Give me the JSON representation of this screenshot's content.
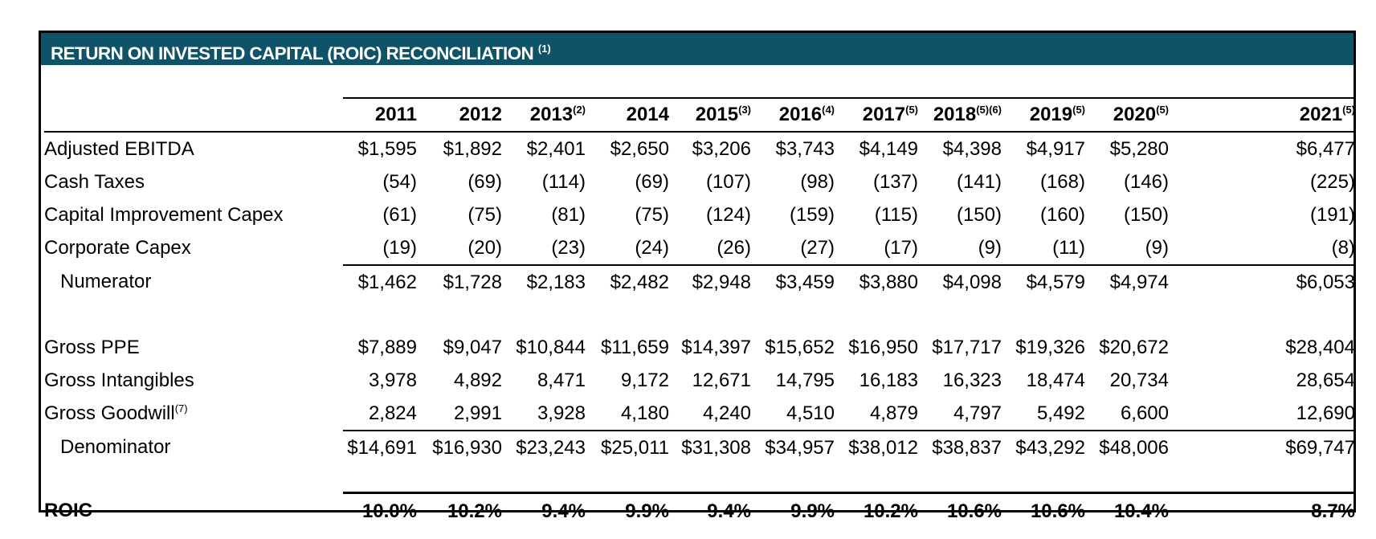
{
  "header": {
    "title": "RETURN ON INVESTED CAPITAL (ROIC) RECONCILIATION",
    "title_note": "(1)"
  },
  "years": [
    {
      "label": "2011",
      "note": ""
    },
    {
      "label": "2012",
      "note": ""
    },
    {
      "label": "2013",
      "note": "(2)"
    },
    {
      "label": "2014",
      "note": ""
    },
    {
      "label": "2015",
      "note": "(3)"
    },
    {
      "label": "2016",
      "note": "(4)"
    },
    {
      "label": "2017",
      "note": "(5)"
    },
    {
      "label": "2018",
      "note": "(5)(6)"
    },
    {
      "label": "2019",
      "note": "(5)"
    },
    {
      "label": "2020",
      "note": "(5)"
    },
    {
      "label": "2021",
      "note": "(5)"
    }
  ],
  "rows": {
    "adjusted_ebitda": {
      "label": "Adjusted EBITDA",
      "values": [
        "$1,595",
        "$1,892",
        "$2,401",
        "$2,650",
        "$3,206",
        "$3,743",
        "$4,149",
        "$4,398",
        "$4,917",
        "$5,280",
        "$6,477"
      ]
    },
    "cash_taxes": {
      "label": "Cash Taxes",
      "values": [
        "(54)",
        "(69)",
        "(114)",
        "(69)",
        "(107)",
        "(98)",
        "(137)",
        "(141)",
        "(168)",
        "(146)",
        "(225)"
      ]
    },
    "capital_improvement_capex": {
      "label": "Capital Improvement Capex",
      "values": [
        "(61)",
        "(75)",
        "(81)",
        "(75)",
        "(124)",
        "(159)",
        "(115)",
        "(150)",
        "(160)",
        "(150)",
        "(191)"
      ]
    },
    "corporate_capex": {
      "label": "Corporate Capex",
      "values": [
        "(19)",
        "(20)",
        "(23)",
        "(24)",
        "(26)",
        "(27)",
        "(17)",
        "(9)",
        "(11)",
        "(9)",
        "(8)"
      ]
    },
    "numerator": {
      "label": "Numerator",
      "values": [
        "$1,462",
        "$1,728",
        "$2,183",
        "$2,482",
        "$2,948",
        "$3,459",
        "$3,880",
        "$4,098",
        "$4,579",
        "$4,974",
        "$6,053"
      ]
    },
    "gross_ppe": {
      "label": "Gross PPE",
      "values": [
        "$7,889",
        "$9,047",
        "$10,844",
        "$11,659",
        "$14,397",
        "$15,652",
        "$16,950",
        "$17,717",
        "$19,326",
        "$20,672",
        "$28,404"
      ]
    },
    "gross_intangibles": {
      "label": "Gross Intangibles",
      "values": [
        "3,978",
        "4,892",
        "8,471",
        "9,172",
        "12,671",
        "14,795",
        "16,183",
        "16,323",
        "18,474",
        "20,734",
        "28,654"
      ]
    },
    "gross_goodwill": {
      "label": "Gross Goodwill",
      "note": "(7)",
      "values": [
        "2,824",
        "2,991",
        "3,928",
        "4,180",
        "4,240",
        "4,510",
        "4,879",
        "4,797",
        "5,492",
        "6,600",
        "12,690"
      ]
    },
    "denominator": {
      "label": "Denominator",
      "values": [
        "$14,691",
        "$16,930",
        "$23,243",
        "$25,011",
        "$31,308",
        "$34,957",
        "$38,012",
        "$38,837",
        "$43,292",
        "$48,006",
        "$69,747"
      ]
    },
    "roic": {
      "label": "ROIC",
      "values": [
        "10.0%",
        "10.2%",
        "9.4%",
        "9.9%",
        "9.4%",
        "9.9%",
        "10.2%",
        "10.6%",
        "10.6%",
        "10.4%",
        "8.7%"
      ]
    }
  }
}
